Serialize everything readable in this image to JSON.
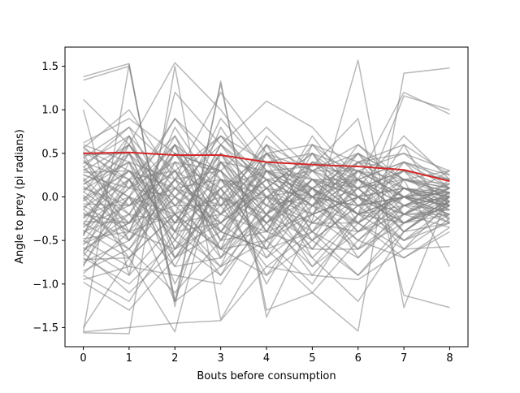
{
  "chart_data": {
    "type": "line",
    "title": "",
    "xlabel": "Bouts before consumption",
    "ylabel": "Angle to prey (pi radians)",
    "xlim": [
      -0.4,
      8.4
    ],
    "ylim": [
      -1.72,
      1.72
    ],
    "x_ticks": [
      0,
      1,
      2,
      3,
      4,
      5,
      6,
      7,
      8
    ],
    "y_ticks": [
      -1.5,
      -1.0,
      -0.5,
      0.0,
      0.5,
      1.0,
      1.5
    ],
    "y_tick_labels": [
      "−1.5",
      "−1.0",
      "−0.5",
      "0.0",
      "0.5",
      "1.0",
      "1.5"
    ],
    "grid": false,
    "x": [
      0,
      1,
      2,
      3,
      4,
      5,
      6,
      7,
      8
    ],
    "colors": {
      "trials": "#808080",
      "mean": "#d62728"
    },
    "series": [
      {
        "role": "mean",
        "values": [
          0.5,
          0.51,
          0.48,
          0.48,
          0.4,
          0.37,
          0.35,
          0.31,
          0.18
        ]
      },
      {
        "role": "trial",
        "values": [
          1.38,
          1.53,
          -1.26,
          1.33,
          -1.38,
          -0.27,
          1.57,
          -1.27,
          0.05
        ]
      },
      {
        "role": "trial",
        "values": [
          1.34,
          1.5,
          -1.2,
          1.3,
          -1.3,
          -1.1,
          -1.54,
          1.42,
          1.48
        ]
      },
      {
        "role": "trial",
        "values": [
          1.12,
          0.6,
          1.54,
          1.0,
          0.3,
          0.35,
          0.9,
          -1.13,
          -1.27
        ]
      },
      {
        "role": "trial",
        "values": [
          1.0,
          -0.9,
          1.2,
          0.6,
          1.1,
          0.8,
          0.2,
          1.2,
          0.95
        ]
      },
      {
        "role": "trial",
        "values": [
          -1.55,
          1.52,
          -1.2,
          0.4,
          0.3,
          0.1,
          -0.2,
          1.16,
          1.0
        ]
      },
      {
        "role": "trial",
        "values": [
          -1.56,
          -1.57,
          1.5,
          -1.41,
          -0.5,
          0.1,
          0.5,
          0.2,
          -0.8
        ]
      },
      {
        "role": "trial",
        "values": [
          -1.5,
          -0.7,
          -1.55,
          0.5,
          0.2,
          -0.1,
          0.4,
          0.6,
          -0.3
        ]
      },
      {
        "role": "trial",
        "values": [
          -1.55,
          -1.5,
          -1.45,
          -1.42,
          -0.8,
          -0.9,
          -0.95,
          -0.6,
          -0.57
        ]
      },
      {
        "role": "trial",
        "values": [
          0.6,
          0.4,
          0.2,
          1.2,
          0.5,
          0.6,
          0.4,
          0.5,
          0.3
        ]
      },
      {
        "role": "trial",
        "values": [
          0.55,
          0.3,
          0.1,
          -0.3,
          0.4,
          0.2,
          0.1,
          0.3,
          0.2
        ]
      },
      {
        "role": "trial",
        "values": [
          0.5,
          -0.4,
          0.6,
          0.2,
          0.1,
          0.5,
          0.3,
          0.0,
          0.1
        ]
      },
      {
        "role": "trial",
        "values": [
          0.45,
          0.8,
          0.3,
          0.7,
          0.2,
          0.1,
          0.2,
          0.4,
          0.25
        ]
      },
      {
        "role": "trial",
        "values": [
          0.4,
          0.2,
          -0.3,
          0.1,
          0.5,
          0.3,
          0.6,
          0.1,
          0.0
        ]
      },
      {
        "role": "trial",
        "values": [
          0.35,
          -0.2,
          0.7,
          -0.4,
          0.3,
          0.0,
          -0.1,
          0.2,
          0.15
        ]
      },
      {
        "role": "trial",
        "values": [
          0.3,
          0.6,
          -0.1,
          0.5,
          -0.2,
          0.4,
          0.1,
          0.3,
          -0.05
        ]
      },
      {
        "role": "trial",
        "values": [
          0.25,
          0.1,
          0.4,
          -0.6,
          0.6,
          -0.3,
          0.2,
          -0.1,
          0.1
        ]
      },
      {
        "role": "trial",
        "values": [
          0.2,
          -0.5,
          0.2,
          0.3,
          -0.4,
          0.5,
          -0.3,
          0.4,
          -0.1
        ]
      },
      {
        "role": "trial",
        "values": [
          0.15,
          0.4,
          -0.5,
          0.8,
          0.0,
          -0.2,
          0.5,
          -0.2,
          0.2
        ]
      },
      {
        "role": "trial",
        "values": [
          0.1,
          -0.1,
          0.5,
          -0.2,
          0.7,
          0.2,
          -0.4,
          0.1,
          -0.15
        ]
      },
      {
        "role": "trial",
        "values": [
          0.05,
          0.7,
          -0.4,
          0.1,
          -0.5,
          0.6,
          0.0,
          -0.3,
          0.05
        ]
      },
      {
        "role": "trial",
        "values": [
          0.0,
          -0.7,
          0.1,
          0.6,
          0.2,
          -0.5,
          0.3,
          0.0,
          -0.2
        ]
      },
      {
        "role": "trial",
        "values": [
          -0.05,
          0.3,
          -0.2,
          -0.8,
          0.4,
          0.0,
          -0.6,
          0.2,
          0.1
        ]
      },
      {
        "role": "trial",
        "values": [
          -0.1,
          -0.4,
          0.8,
          0.0,
          -0.3,
          0.3,
          0.1,
          -0.4,
          -0.05
        ]
      },
      {
        "role": "trial",
        "values": [
          -0.15,
          0.5,
          -0.6,
          0.4,
          -0.1,
          -0.4,
          0.4,
          0.1,
          0.0
        ]
      },
      {
        "role": "trial",
        "values": [
          -0.2,
          -0.3,
          0.3,
          -0.5,
          0.5,
          0.1,
          -0.2,
          -0.1,
          0.15
        ]
      },
      {
        "role": "trial",
        "values": [
          -0.25,
          0.2,
          -0.8,
          0.2,
          -0.6,
          0.4,
          -0.1,
          0.3,
          -0.25
        ]
      },
      {
        "role": "trial",
        "values": [
          -0.3,
          -0.6,
          0.0,
          -0.3,
          0.1,
          -0.6,
          0.2,
          -0.2,
          0.05
        ]
      },
      {
        "role": "trial",
        "values": [
          -0.35,
          0.1,
          0.6,
          -0.7,
          0.3,
          -0.1,
          -0.5,
          0.0,
          -0.1
        ]
      },
      {
        "role": "trial",
        "values": [
          -0.4,
          -0.2,
          -0.3,
          0.5,
          -0.4,
          0.2,
          0.0,
          -0.5,
          -0.3
        ]
      },
      {
        "role": "trial",
        "values": [
          -0.45,
          0.6,
          -0.1,
          -0.1,
          0.0,
          -0.3,
          -0.3,
          0.1,
          -0.15
        ]
      },
      {
        "role": "trial",
        "values": [
          -0.5,
          -0.8,
          0.4,
          0.3,
          -0.7,
          0.0,
          0.3,
          -0.3,
          0.0
        ]
      },
      {
        "role": "trial",
        "values": [
          -0.55,
          0.0,
          -0.7,
          -0.2,
          0.2,
          -0.7,
          -0.2,
          0.0,
          -0.2
        ]
      },
      {
        "role": "trial",
        "values": [
          -0.6,
          -0.3,
          0.2,
          -0.6,
          -0.2,
          0.1,
          -0.7,
          -0.1,
          0.1
        ]
      },
      {
        "role": "trial",
        "values": [
          -0.65,
          0.4,
          -1.0,
          0.0,
          -0.9,
          -0.2,
          0.0,
          -0.6,
          -0.05
        ]
      },
      {
        "role": "trial",
        "values": [
          -0.7,
          -1.0,
          -0.5,
          -0.9,
          0.0,
          -0.8,
          -0.4,
          -0.2,
          -0.35
        ]
      },
      {
        "role": "trial",
        "values": [
          -0.75,
          -0.5,
          0.0,
          -0.4,
          -0.6,
          -0.4,
          -0.9,
          -0.4,
          0.0
        ]
      },
      {
        "role": "trial",
        "values": [
          -0.8,
          0.2,
          -0.7,
          0.1,
          -1.0,
          -0.1,
          -0.3,
          -0.7,
          -0.4
        ]
      },
      {
        "role": "trial",
        "values": [
          -0.85,
          -0.6,
          -1.1,
          -0.5,
          -0.4,
          -0.6,
          -0.6,
          -0.3,
          -0.2
        ]
      },
      {
        "role": "trial",
        "values": [
          -0.9,
          -1.2,
          -0.4,
          -0.8,
          -0.5,
          -1.0,
          -0.2,
          -0.5,
          -0.1
        ]
      },
      {
        "role": "trial",
        "values": [
          -0.95,
          -0.8,
          -0.9,
          -1.0,
          -0.2,
          -0.7,
          -1.2,
          -0.4,
          -0.3
        ]
      },
      {
        "role": "trial",
        "values": [
          0.62,
          0.9,
          0.5,
          0.3,
          0.8,
          0.3,
          0.5,
          0.2,
          0.3
        ]
      },
      {
        "role": "trial",
        "values": [
          0.58,
          0.1,
          0.9,
          0.4,
          0.0,
          0.4,
          0.3,
          0.5,
          0.1
        ]
      },
      {
        "role": "trial",
        "values": [
          0.48,
          0.5,
          -0.2,
          0.9,
          0.3,
          -0.1,
          0.6,
          0.2,
          0.05
        ]
      },
      {
        "role": "trial",
        "values": [
          0.42,
          -0.1,
          0.3,
          0.0,
          0.6,
          0.3,
          -0.2,
          0.6,
          0.25
        ]
      },
      {
        "role": "trial",
        "values": [
          0.38,
          0.7,
          0.1,
          0.2,
          -0.1,
          0.6,
          0.2,
          -0.1,
          0.0
        ]
      },
      {
        "role": "trial",
        "values": [
          0.32,
          0.0,
          0.6,
          -0.1,
          0.4,
          0.1,
          0.4,
          0.3,
          0.2
        ]
      },
      {
        "role": "trial",
        "values": [
          0.28,
          0.3,
          -0.4,
          0.6,
          0.1,
          0.5,
          -0.1,
          0.0,
          -0.1
        ]
      },
      {
        "role": "trial",
        "values": [
          0.22,
          -0.3,
          0.4,
          0.1,
          0.3,
          0.0,
          0.2,
          0.4,
          0.1
        ]
      },
      {
        "role": "trial",
        "values": [
          0.18,
          0.6,
          0.0,
          0.4,
          -0.3,
          0.2,
          0.0,
          0.1,
          -0.05
        ]
      },
      {
        "role": "trial",
        "values": [
          0.12,
          -0.2,
          0.5,
          -0.3,
          0.2,
          0.3,
          0.3,
          0.0,
          0.15
        ]
      },
      {
        "role": "trial",
        "values": [
          0.08,
          0.4,
          -0.3,
          0.5,
          0.0,
          -0.1,
          0.1,
          0.2,
          0.0
        ]
      },
      {
        "role": "trial",
        "values": [
          0.02,
          -0.4,
          0.2,
          -0.2,
          0.5,
          0.0,
          -0.1,
          0.0,
          -0.05
        ]
      },
      {
        "role": "trial",
        "values": [
          -0.02,
          0.3,
          -0.1,
          0.3,
          -0.2,
          0.2,
          0.2,
          -0.2,
          0.1
        ]
      },
      {
        "role": "trial",
        "values": [
          -0.08,
          -0.1,
          0.3,
          -0.4,
          0.1,
          -0.2,
          0.0,
          0.1,
          -0.1
        ]
      },
      {
        "role": "trial",
        "values": [
          -0.12,
          0.2,
          -0.5,
          0.2,
          -0.3,
          0.1,
          -0.2,
          0.0,
          0.05
        ]
      },
      {
        "role": "trial",
        "values": [
          -0.18,
          -0.5,
          0.1,
          -0.1,
          0.3,
          -0.4,
          0.1,
          -0.3,
          -0.05
        ]
      },
      {
        "role": "trial",
        "values": [
          -0.22,
          0.0,
          -0.2,
          -0.6,
          0.0,
          0.1,
          -0.4,
          0.1,
          0.0
        ]
      },
      {
        "role": "trial",
        "values": [
          -0.28,
          -0.3,
          0.5,
          0.0,
          -0.5,
          -0.2,
          0.0,
          -0.2,
          -0.2
        ]
      },
      {
        "role": "trial",
        "values": [
          -0.32,
          0.5,
          -0.6,
          -0.3,
          0.1,
          -0.5,
          -0.1,
          0.0,
          0.05
        ]
      },
      {
        "role": "trial",
        "values": [
          -0.38,
          -0.7,
          -0.2,
          0.2,
          -0.3,
          0.0,
          -0.5,
          -0.1,
          -0.15
        ]
      },
      {
        "role": "trial",
        "values": [
          -0.42,
          0.1,
          0.0,
          -0.7,
          -0.1,
          -0.3,
          0.1,
          -0.4,
          0.0
        ]
      },
      {
        "role": "trial",
        "values": [
          -0.48,
          -0.4,
          -0.6,
          0.1,
          -0.6,
          0.1,
          -0.3,
          0.0,
          -0.25
        ]
      },
      {
        "role": "trial",
        "values": [
          -0.52,
          0.2,
          0.3,
          -0.5,
          0.0,
          -0.6,
          0.0,
          -0.3,
          -0.1
        ]
      },
      {
        "role": "trial",
        "values": [
          -0.58,
          -0.9,
          -0.3,
          -0.2,
          -0.4,
          -0.2,
          -0.6,
          -0.2,
          0.05
        ]
      },
      {
        "role": "trial",
        "values": [
          -0.62,
          -0.2,
          -0.8,
          -0.7,
          -0.2,
          -0.5,
          -0.1,
          -0.5,
          -0.2
        ]
      },
      {
        "role": "trial",
        "values": [
          -0.68,
          0.0,
          -0.4,
          -0.3,
          -0.7,
          -0.3,
          -0.4,
          -0.1,
          -0.3
        ]
      },
      {
        "role": "trial",
        "values": [
          -0.72,
          -0.7,
          -0.2,
          -0.9,
          -0.3,
          -0.8,
          -0.2,
          -0.3,
          -0.05
        ]
      },
      {
        "role": "trial",
        "values": [
          0.56,
          1.0,
          0.2,
          0.7,
          0.4,
          0.5,
          0.1,
          0.7,
          0.2
        ]
      },
      {
        "role": "trial",
        "values": [
          0.52,
          0.2,
          0.7,
          -0.1,
          0.6,
          0.0,
          0.5,
          0.0,
          0.3
        ]
      },
      {
        "role": "trial",
        "values": [
          0.46,
          -0.5,
          0.5,
          0.3,
          -0.2,
          0.7,
          0.0,
          0.3,
          0.1
        ]
      },
      {
        "role": "trial",
        "values": [
          0.34,
          0.8,
          -0.2,
          0.0,
          0.5,
          -0.2,
          0.3,
          0.1,
          0.05
        ]
      },
      {
        "role": "trial",
        "values": [
          0.26,
          0.0,
          0.9,
          0.2,
          0.0,
          0.3,
          0.0,
          0.4,
          0.2
        ]
      },
      {
        "role": "trial",
        "values": [
          0.14,
          0.5,
          0.0,
          0.7,
          0.1,
          0.0,
          0.4,
          -0.1,
          0.0
        ]
      },
      {
        "role": "trial",
        "values": [
          0.06,
          -0.3,
          0.6,
          -0.5,
          0.3,
          0.2,
          -0.2,
          0.2,
          0.1
        ]
      },
      {
        "role": "trial",
        "values": [
          -0.04,
          0.6,
          -0.3,
          0.4,
          -0.4,
          0.4,
          0.2,
          0.0,
          -0.1
        ]
      },
      {
        "role": "trial",
        "values": [
          -0.14,
          -0.6,
          0.2,
          -0.2,
          0.2,
          -0.1,
          0.3,
          0.2,
          0.05
        ]
      },
      {
        "role": "trial",
        "values": [
          -0.24,
          0.3,
          -0.4,
          0.6,
          -0.1,
          0.0,
          -0.3,
          0.1,
          -0.1
        ]
      },
      {
        "role": "trial",
        "values": [
          -0.34,
          -0.1,
          0.1,
          -0.4,
          0.4,
          -0.4,
          0.0,
          -0.2,
          0.0
        ]
      },
      {
        "role": "trial",
        "values": [
          -0.44,
          0.7,
          -0.7,
          0.0,
          -0.2,
          0.2,
          -0.2,
          0.0,
          -0.3
        ]
      },
      {
        "role": "trial",
        "values": [
          -0.54,
          -0.3,
          -0.1,
          -0.6,
          -0.5,
          -0.1,
          0.2,
          -0.4,
          -0.05
        ]
      },
      {
        "role": "trial",
        "values": [
          -0.64,
          -1.1,
          -0.6,
          -0.1,
          -0.8,
          -0.4,
          -0.7,
          -0.2,
          -0.15
        ]
      },
      {
        "role": "trial",
        "values": [
          -0.78,
          0.0,
          -1.2,
          -0.8,
          -0.2,
          -0.9,
          -0.3,
          -0.6,
          -0.25
        ]
      },
      {
        "role": "trial",
        "values": [
          -0.88,
          -0.4,
          -0.2,
          -0.6,
          -0.9,
          -0.5,
          -0.9,
          -0.3,
          -0.1
        ]
      },
      {
        "role": "trial",
        "values": [
          -0.98,
          -1.3,
          -0.7,
          -0.4,
          -0.6,
          -1.1,
          -0.5,
          -0.7,
          -0.35
        ]
      }
    ]
  }
}
